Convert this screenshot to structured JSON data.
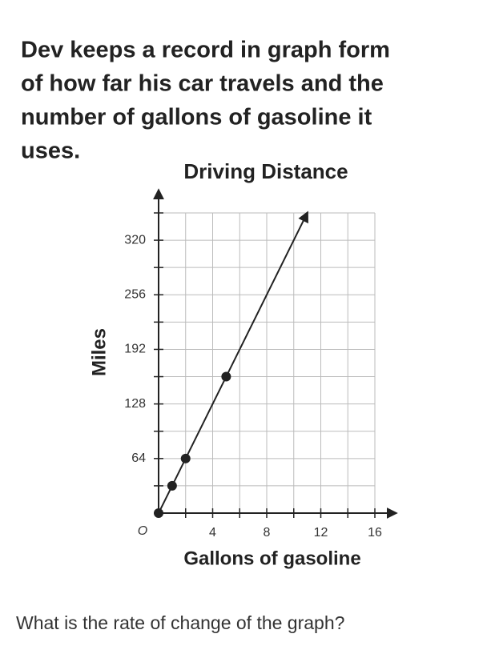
{
  "intro": [
    "Dev keeps a record in graph form",
    "of how far his car travels and the",
    "number of gallons of gasoline it",
    "uses."
  ],
  "chart_data": {
    "type": "line",
    "title": "Driving Distance",
    "x_label": "Gallons of gasoline",
    "y_label": "Miles",
    "origin_label": "O",
    "x": [
      0,
      1,
      2,
      5,
      11
    ],
    "series": [
      {
        "color": "#222222",
        "values": [
          0,
          32,
          64,
          160,
          352
        ]
      }
    ],
    "xlim": [
      0,
      16
    ],
    "ylim": [
      0,
      352
    ],
    "xticks": [
      4,
      8,
      12,
      16
    ],
    "yticks": [
      64,
      128,
      192,
      256,
      320
    ],
    "xgrid": [
      2,
      4,
      6,
      8,
      10,
      12,
      14,
      16
    ],
    "ygrid": [
      32,
      64,
      96,
      128,
      160,
      192,
      224,
      256,
      288,
      320,
      352
    ],
    "grid": true
  },
  "question": "What is the rate of change of the graph?"
}
